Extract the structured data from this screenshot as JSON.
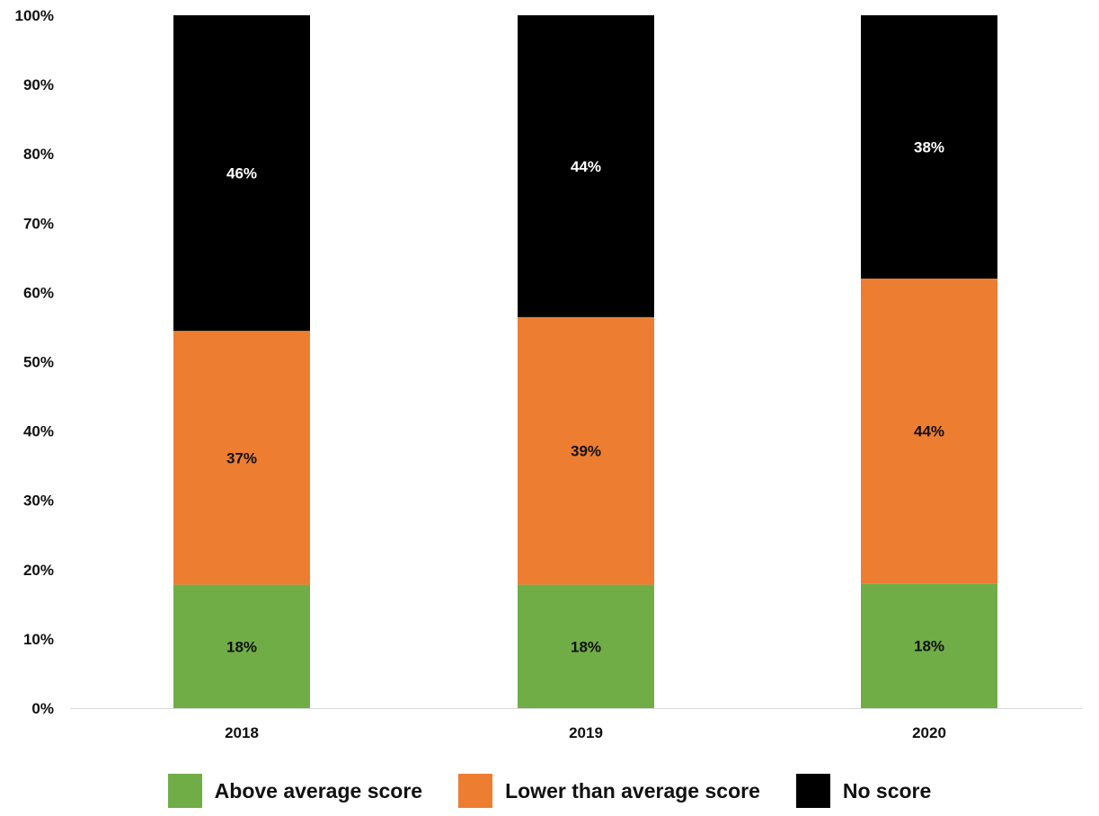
{
  "chart_data": {
    "type": "bar",
    "stacked": true,
    "categories": [
      "2018",
      "2019",
      "2020"
    ],
    "series": [
      {
        "name": "Above average score",
        "values": [
          18,
          18,
          18
        ],
        "labels": [
          "18%",
          "18%",
          "18%"
        ],
        "color": "#70ad47",
        "label_color": "#111111"
      },
      {
        "name": "Lower than average score",
        "values": [
          37,
          39,
          44
        ],
        "labels": [
          "37%",
          "39%",
          "44%"
        ],
        "color": "#ed7d31",
        "label_color": "#111111"
      },
      {
        "name": "No score",
        "values": [
          46,
          44,
          38
        ],
        "labels": [
          "46%",
          "44%",
          "38%"
        ],
        "color": "#000000",
        "label_color": "#ffffff"
      }
    ],
    "y_ticks": [
      "0%",
      "10%",
      "20%",
      "30%",
      "40%",
      "50%",
      "60%",
      "70%",
      "80%",
      "90%",
      "100%"
    ],
    "ylim": [
      0,
      100
    ],
    "title": "",
    "xlabel": "",
    "ylabel": "",
    "grid": false,
    "legend_position": "bottom"
  }
}
